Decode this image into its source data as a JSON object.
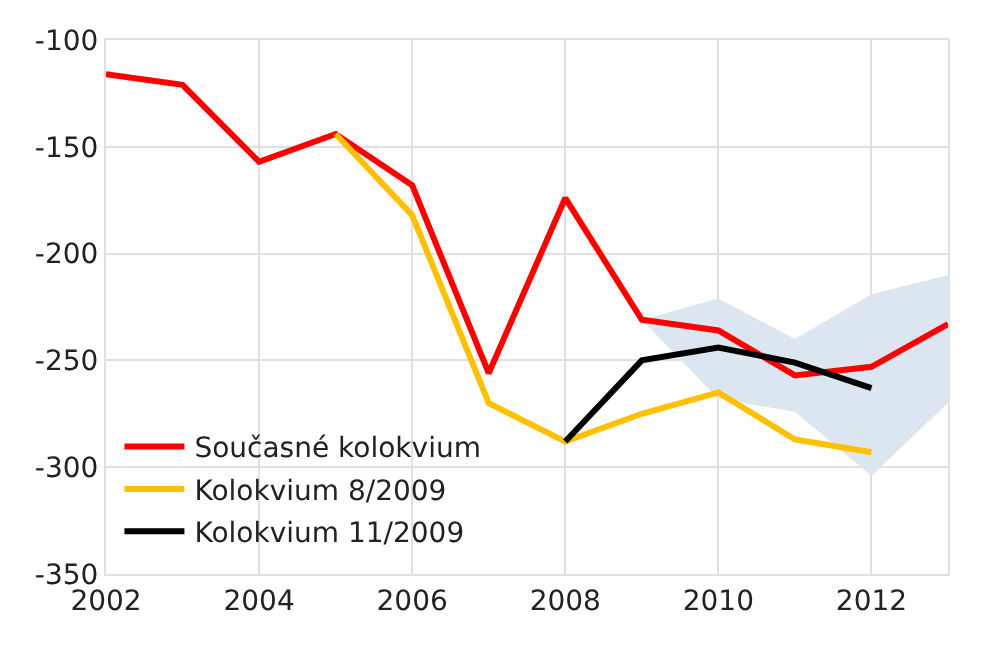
{
  "chart_data": {
    "type": "line",
    "x": [
      2002,
      2003,
      2004,
      2005,
      2006,
      2007,
      2008,
      2009,
      2010,
      2011,
      2012,
      2013
    ],
    "series": [
      {
        "name": "Současné kolokvium",
        "color": "#ff0000",
        "values": [
          -116,
          -121,
          -157,
          -144,
          -168,
          -256,
          -174,
          -231,
          -236,
          -257,
          -253,
          -233
        ],
        "lower": [
          null,
          null,
          null,
          null,
          null,
          null,
          null,
          -231,
          -268,
          -274,
          -304,
          -270
        ],
        "upper": [
          null,
          null,
          null,
          null,
          null,
          null,
          null,
          -231,
          -221,
          -240,
          -219,
          -210
        ]
      },
      {
        "name": "Kolokvium 8/2009",
        "color": "#ffc000",
        "values": [
          null,
          null,
          null,
          -144,
          -182,
          -270,
          -288,
          -275,
          -265,
          -287,
          -293,
          null
        ]
      },
      {
        "name": "Kolokvium 11/2009",
        "color": "#000000",
        "values": [
          null,
          null,
          null,
          null,
          null,
          null,
          -288,
          -250,
          -244,
          -251,
          -263,
          null
        ]
      }
    ],
    "xlim": [
      2002,
      2013
    ],
    "xticks": [
      2002,
      2004,
      2006,
      2008,
      2010,
      2012
    ],
    "ylim": [
      -350,
      -100
    ],
    "yticks": [
      -350,
      -300,
      -250,
      -200,
      -150,
      -100
    ],
    "grid": true,
    "legend": "bottom left",
    "marker": "none",
    "line_style": "solid"
  }
}
